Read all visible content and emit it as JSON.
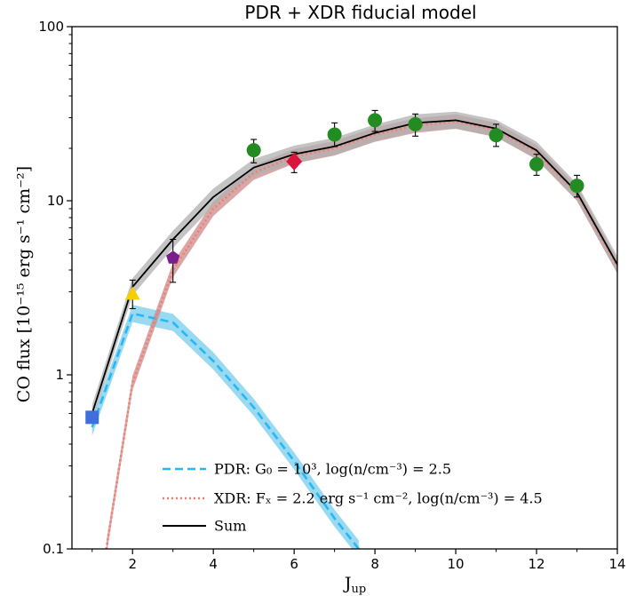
{
  "chart_data": {
    "type": "line",
    "title": "PDR + XDR fiducial model",
    "xlabel": "J",
    "xlabel_sub": "up",
    "ylabel": "CO flux [10⁻¹⁵ erg s⁻¹ cm⁻²]",
    "xlim": [
      0.5,
      14
    ],
    "ylim": [
      0.1,
      100
    ],
    "yscale": "log",
    "xticks": [
      2,
      4,
      6,
      8,
      10,
      12,
      14
    ],
    "xtick_labels": [
      "2",
      "4",
      "6",
      "8",
      "10",
      "12",
      "14"
    ],
    "yticks": [
      0.1,
      1,
      10,
      100
    ],
    "ytick_labels": [
      "0.1",
      "1",
      "10",
      "100"
    ],
    "legend_position": "bottom-center",
    "series": [
      {
        "key": "pdr",
        "name": "PDR: G₀ = 10³, log(n/cm⁻³) = 2.5",
        "color": "#29b6f6",
        "band_color": "#87d3ef",
        "style": "dashed",
        "x": [
          1,
          2,
          3,
          4,
          5,
          6,
          7,
          7.6
        ],
        "y": [
          0.5,
          2.25,
          2.0,
          1.2,
          0.65,
          0.32,
          0.15,
          0.1
        ],
        "band_factor": 1.12
      },
      {
        "key": "xdr",
        "name": "XDR: Fₓ = 2.2 erg s⁻¹ cm⁻², log(n/cm⁻³) = 4.5",
        "color": "#f47c6e",
        "band_color": "#cc8a8a",
        "style": "dotted",
        "x": [
          1.35,
          2,
          3,
          4,
          5,
          6,
          7,
          8,
          9,
          10,
          11,
          12,
          13,
          14
        ],
        "y": [
          0.1,
          0.9,
          4.0,
          9.0,
          14.5,
          18.0,
          20.0,
          24.0,
          27.0,
          28.5,
          25.5,
          19.0,
          11.0,
          4.2
        ],
        "band_factor": 1.1
      },
      {
        "key": "sum",
        "name": "Sum",
        "color": "#000000",
        "band_color": "#b0b0b0",
        "style": "solid",
        "x": [
          1,
          2,
          3,
          4,
          5,
          6,
          7,
          8,
          9,
          10,
          11,
          12,
          13,
          14
        ],
        "y": [
          0.6,
          3.2,
          6.0,
          10.5,
          15.5,
          18.5,
          20.5,
          24.5,
          28.0,
          29.0,
          26.0,
          19.5,
          11.2,
          4.3
        ],
        "band_factor": 1.12
      }
    ],
    "observations": [
      {
        "x": 1,
        "y": 0.57,
        "marker": "square",
        "color": "#3f6fdc",
        "err_low": 0.57,
        "err_high": 0.57
      },
      {
        "x": 2,
        "y": 2.9,
        "marker": "triangle",
        "color": "#f5d000",
        "err_low": 2.4,
        "err_high": 3.5
      },
      {
        "x": 3,
        "y": 4.7,
        "marker": "pentagon",
        "color": "#7b1f8a",
        "err_low": 3.4,
        "err_high": 6.0
      },
      {
        "x": 5,
        "y": 19.5,
        "marker": "circle",
        "color": "#228b22",
        "err_low": 16.5,
        "err_high": 22.5
      },
      {
        "x": 6,
        "y": 16.8,
        "marker": "diamond",
        "color": "#dc143c",
        "err_low": 14.5,
        "err_high": 19.0
      },
      {
        "x": 7,
        "y": 24.0,
        "marker": "circle",
        "color": "#228b22",
        "err_low": 20.5,
        "err_high": 28.0
      },
      {
        "x": 8,
        "y": 29.0,
        "marker": "circle",
        "color": "#228b22",
        "err_low": 25.0,
        "err_high": 33.0
      },
      {
        "x": 9,
        "y": 27.5,
        "marker": "circle",
        "color": "#228b22",
        "err_low": 23.5,
        "err_high": 31.5
      },
      {
        "x": 11,
        "y": 23.8,
        "marker": "circle",
        "color": "#228b22",
        "err_low": 20.5,
        "err_high": 27.5
      },
      {
        "x": 12,
        "y": 16.2,
        "marker": "circle",
        "color": "#228b22",
        "err_low": 14.0,
        "err_high": 18.5
      },
      {
        "x": 13,
        "y": 12.2,
        "marker": "circle",
        "color": "#228b22",
        "err_low": 10.5,
        "err_high": 14.0
      }
    ]
  }
}
